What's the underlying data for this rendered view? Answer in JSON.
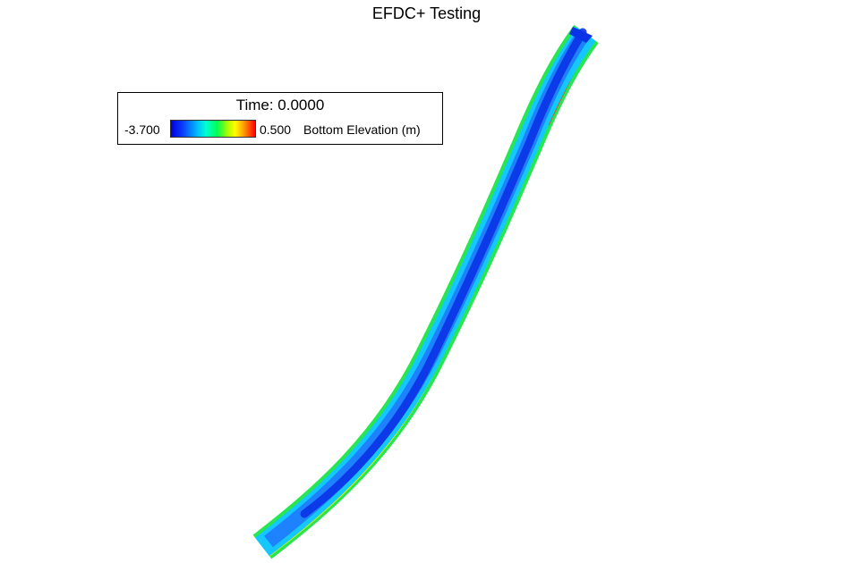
{
  "title": "EFDC+ Testing",
  "legend": {
    "time_label": "Time: 0.0000",
    "min_label": "-3.700",
    "max_label": "0.500",
    "variable_label": "Bottom Elevation (m)"
  },
  "colors": {
    "deep": "#0a32e6",
    "mid": "#1e8cff",
    "shallow": "#00d2ff",
    "bank_green": "#28e650",
    "bank_yellow": "#e6f000",
    "bank_red": "#e63200"
  }
}
